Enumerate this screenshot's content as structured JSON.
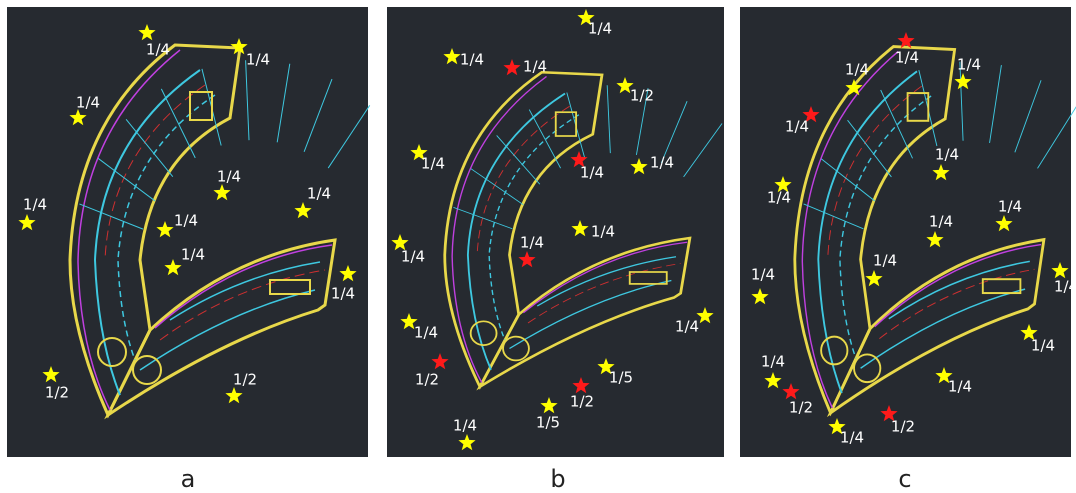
{
  "panels": [
    {
      "caption": "a",
      "markers": [
        {
          "label": "1/4",
          "color": "#ffff00"
        },
        {
          "label": "1/4",
          "color": "#ffff00"
        },
        {
          "label": "1/4",
          "color": "#ffff00"
        },
        {
          "label": "1/4",
          "color": "#ffff00"
        },
        {
          "label": "1/4",
          "color": "#ffff00"
        },
        {
          "label": "1/4",
          "color": "#ffff00"
        },
        {
          "label": "1/4",
          "color": "#ffff00"
        },
        {
          "label": "1/4",
          "color": "#ffff00"
        },
        {
          "label": "1/4",
          "color": "#ffff00"
        },
        {
          "label": "1/2",
          "color": "#ffff00"
        },
        {
          "label": "1/2",
          "color": "#ffff00"
        }
      ]
    },
    {
      "caption": "b",
      "markers": [
        {
          "label": "1/4",
          "color": "#ffff00"
        },
        {
          "label": "1/4",
          "color": "#ffff00"
        },
        {
          "label": "1/4",
          "color": "#ff1a1a"
        },
        {
          "label": "1/2",
          "color": "#ffff00"
        },
        {
          "label": "1/4",
          "color": "#ffff00"
        },
        {
          "label": "1/4",
          "color": "#ff1a1a"
        },
        {
          "label": "1/4",
          "color": "#ffff00"
        },
        {
          "label": "1/4",
          "color": "#ffff00"
        },
        {
          "label": "1/4",
          "color": "#ff1a1a"
        },
        {
          "label": "1/4",
          "color": "#ffff00"
        },
        {
          "label": "1/4",
          "color": "#ffff00"
        },
        {
          "label": "1/4",
          "color": "#ffff00"
        },
        {
          "label": "1/2",
          "color": "#ff1a1a"
        },
        {
          "label": "1/5",
          "color": "#ffff00"
        },
        {
          "label": "1/2",
          "color": "#ff1a1a"
        },
        {
          "label": "1/5",
          "color": "#ffff00"
        },
        {
          "label": "1/4",
          "color": "#ffff00"
        }
      ]
    },
    {
      "caption": "c",
      "markers": [
        {
          "label": "1/4",
          "color": "#ff1a1a"
        },
        {
          "label": "1/4",
          "color": "#ffff00"
        },
        {
          "label": "1/4",
          "color": "#ffff00"
        },
        {
          "label": "1/4",
          "color": "#ff1a1a"
        },
        {
          "label": "1/4",
          "color": "#ffff00"
        },
        {
          "label": "1/4",
          "color": "#ffff00"
        },
        {
          "label": "1/4",
          "color": "#ffff00"
        },
        {
          "label": "1/4",
          "color": "#ffff00"
        },
        {
          "label": "1/4",
          "color": "#ffff00"
        },
        {
          "label": "1/4",
          "color": "#ffff00"
        },
        {
          "label": "1/4",
          "color": "#ffff00"
        },
        {
          "label": "1/4",
          "color": "#ffff00"
        },
        {
          "label": "1/4",
          "color": "#ffff00"
        },
        {
          "label": "1/4",
          "color": "#ffff00"
        },
        {
          "label": "1/2",
          "color": "#ff1a1a"
        },
        {
          "label": "1/2",
          "color": "#ff1a1a"
        },
        {
          "label": "1/4",
          "color": "#ffff00"
        }
      ]
    }
  ]
}
